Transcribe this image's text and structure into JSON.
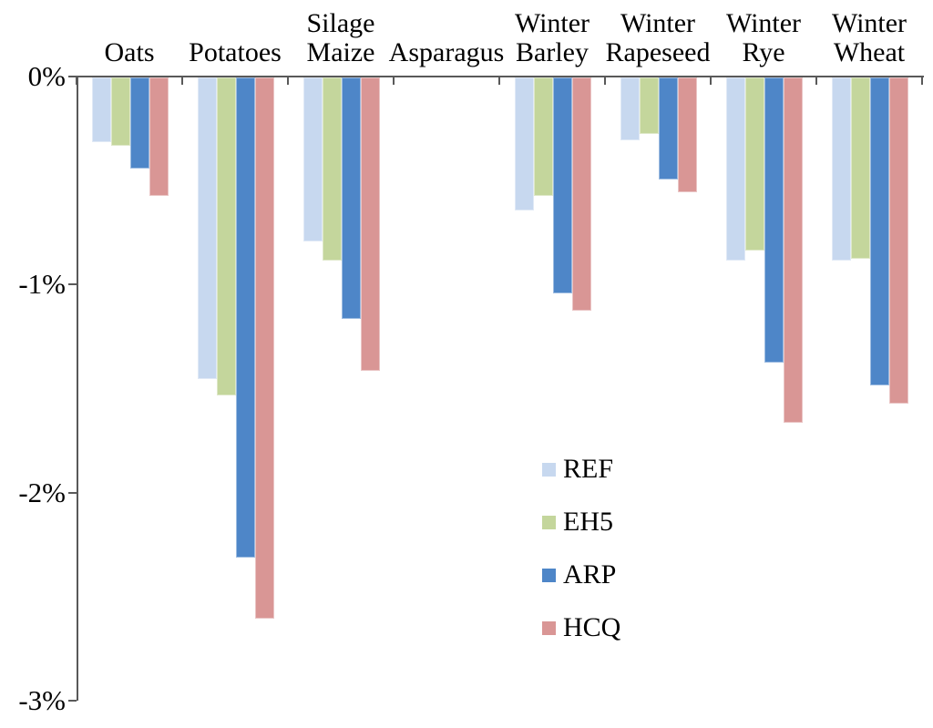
{
  "chart_data": {
    "type": "bar",
    "title": "",
    "xlabel": "",
    "ylabel": "",
    "grid": false,
    "bar_direction": "negative-down",
    "categories": [
      "Oats",
      "Potatoes",
      "Silage Maize",
      "Asparagus",
      "Winter Barley",
      "Winter Rapeseed",
      "Winter Rye",
      "Winter Wheat"
    ],
    "category_label_lines": [
      [
        "Oats"
      ],
      [
        "Potatoes"
      ],
      [
        "Silage",
        "Maize"
      ],
      [
        "Asparagus"
      ],
      [
        "Winter",
        "Barley"
      ],
      [
        "Winter",
        "Rapeseed"
      ],
      [
        "Winter",
        "Rye"
      ],
      [
        "Winter",
        "Wheat"
      ]
    ],
    "series": [
      {
        "name": "REF",
        "color": "#c7d8ef",
        "values": [
          -0.31,
          -1.45,
          -0.79,
          0,
          -0.64,
          -0.3,
          -0.88,
          -0.88
        ]
      },
      {
        "name": "EH5",
        "color": "#c4d69c",
        "values": [
          -0.33,
          -1.53,
          -0.88,
          0,
          -0.57,
          -0.27,
          -0.83,
          -0.87
        ]
      },
      {
        "name": "ARP",
        "color": "#4e86c8",
        "values": [
          -0.44,
          -2.31,
          -1.16,
          0,
          -1.04,
          -0.49,
          -1.37,
          -1.48
        ]
      },
      {
        "name": "HCQ",
        "color": "#d99695",
        "values": [
          -0.57,
          -2.6,
          -1.41,
          0,
          -1.12,
          -0.55,
          -1.66,
          -1.57
        ]
      }
    ],
    "y_axis": {
      "ticks": [
        "0%",
        "-1%",
        "-2%",
        "-3%"
      ],
      "tick_values": [
        0,
        -1,
        -2,
        -3
      ],
      "max": 0,
      "min": -3,
      "unit": "%"
    },
    "legend": {
      "position": "center-right",
      "items": [
        "REF",
        "EH5",
        "ARP",
        "HCQ"
      ]
    },
    "axis_color": "#595959"
  }
}
